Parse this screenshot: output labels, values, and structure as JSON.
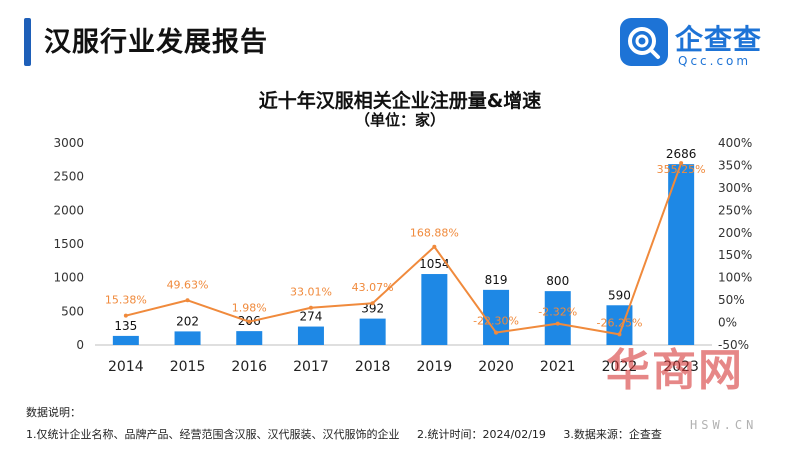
{
  "header": {
    "title": "汉服行业发展报告"
  },
  "brand": {
    "name": "企查查",
    "url": "Qcc.com",
    "icon": "qcc-logo-icon",
    "color": "#1d73d6"
  },
  "chart_data": {
    "type": "bar",
    "title": "近十年汉服相关企业注册量&增速",
    "subtitle": "（单位：家）",
    "categories": [
      "2014",
      "2015",
      "2016",
      "2017",
      "2018",
      "2019",
      "2020",
      "2021",
      "2022",
      "2023"
    ],
    "series": [
      {
        "kind": "bar",
        "axis": "left",
        "color": "#1e88e5",
        "values": [
          135,
          202,
          206,
          274,
          392,
          1054,
          819,
          800,
          590,
          2686
        ],
        "labels": [
          "135",
          "202",
          "206",
          "274",
          "392",
          "1054",
          "819",
          "800",
          "590",
          "2686"
        ]
      },
      {
        "kind": "line",
        "axis": "right",
        "color": "#f08a3c",
        "values": [
          15.38,
          49.63,
          1.98,
          33.01,
          43.07,
          168.88,
          -22.3,
          -2.32,
          -26.25,
          355.25
        ],
        "labels": [
          "15.38%",
          "49.63%",
          "1.98%",
          "33.01%",
          "43.07%",
          "168.88%",
          "-22.30%",
          "-2.32%",
          "-26.25%",
          "355.25%"
        ]
      }
    ],
    "y_left": {
      "min": 0,
      "max": 3000,
      "ticks": [
        "0",
        "500",
        "1000",
        "1500",
        "2000",
        "2500",
        "3000"
      ]
    },
    "y_right": {
      "min": -50,
      "max": 400,
      "ticks": [
        "-50%",
        "0%",
        "50%",
        "100%",
        "150%",
        "200%",
        "250%",
        "300%",
        "350%",
        "400%"
      ]
    },
    "grid": false,
    "legend": "none"
  },
  "notes": {
    "title": "数据说明：",
    "items": [
      "1.仅统计企业名称、品牌产品、经营范围含汉服、汉代服装、汉代服饰的企业",
      "2.统计时间：2024/02/19",
      "3.数据来源：企查查"
    ]
  },
  "watermark": {
    "text": "华商网",
    "url": "HSW.CN"
  }
}
